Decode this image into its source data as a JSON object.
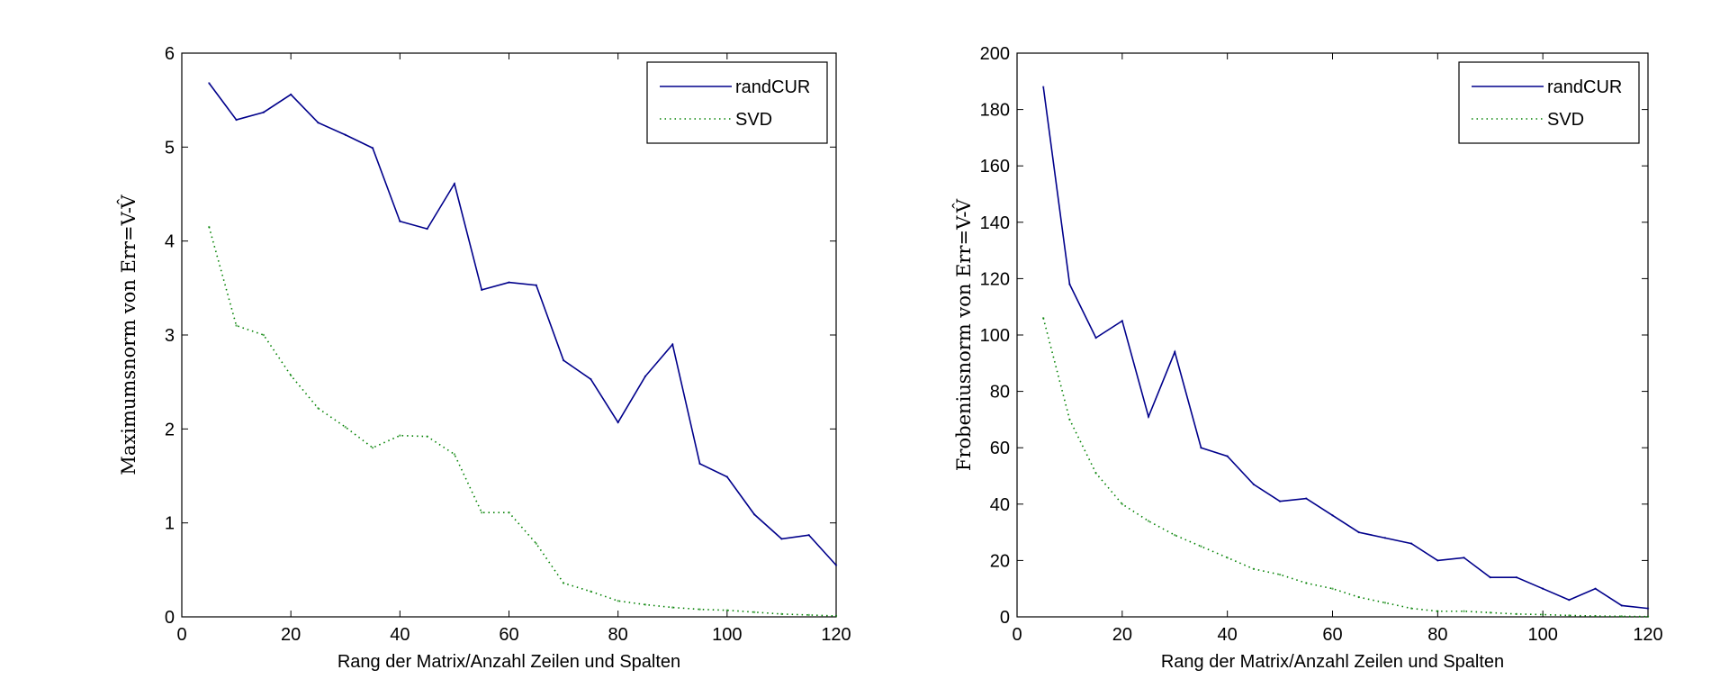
{
  "chart_data": [
    {
      "type": "line",
      "xlabel": "Rang der Matrix/Anzahl Zeilen und Spalten",
      "ylabel": "Maximumsnorm von Err=V-V̂",
      "xlim": [
        0,
        120
      ],
      "ylim": [
        0,
        6
      ],
      "xticks": [
        "0",
        "20",
        "40",
        "60",
        "80",
        "100",
        "120"
      ],
      "yticks": [
        "0",
        "1",
        "2",
        "3",
        "4",
        "5",
        "6"
      ],
      "xtick_values": [
        0,
        20,
        40,
        60,
        80,
        100,
        120
      ],
      "ytick_values": [
        0,
        1,
        2,
        3,
        4,
        5,
        6
      ],
      "grid": false,
      "legend_position": "top-right",
      "x": [
        5,
        10,
        15,
        20,
        25,
        30,
        35,
        40,
        45,
        50,
        55,
        60,
        65,
        70,
        75,
        80,
        85,
        90,
        95,
        100,
        105,
        110,
        115,
        120
      ],
      "series": [
        {
          "name": "randCUR",
          "style": "solid",
          "color": "#00008B",
          "values": [
            5.68,
            5.29,
            5.37,
            5.56,
            5.26,
            5.13,
            4.99,
            4.21,
            4.13,
            4.61,
            3.48,
            3.56,
            3.53,
            2.73,
            2.53,
            2.07,
            2.56,
            2.9,
            1.63,
            1.49,
            1.09,
            0.83,
            0.87,
            0.55
          ]
        },
        {
          "name": "SVD",
          "style": "dotted",
          "color": "#008000",
          "values": [
            4.15,
            3.1,
            3.0,
            2.57,
            2.22,
            2.02,
            1.8,
            1.93,
            1.92,
            1.73,
            1.11,
            1.11,
            0.78,
            0.36,
            0.27,
            0.17,
            0.13,
            0.1,
            0.08,
            0.07,
            0.05,
            0.03,
            0.02,
            0.01
          ]
        }
      ]
    },
    {
      "type": "line",
      "xlabel": "Rang der Matrix/Anzahl Zeilen und Spalten",
      "ylabel": "Frobeniusnorm von Err=V-V̂",
      "xlim": [
        0,
        120
      ],
      "ylim": [
        0,
        200
      ],
      "xticks": [
        "0",
        "20",
        "40",
        "60",
        "80",
        "100",
        "120"
      ],
      "yticks": [
        "0",
        "20",
        "40",
        "60",
        "80",
        "100",
        "120",
        "140",
        "160",
        "180",
        "200"
      ],
      "xtick_values": [
        0,
        20,
        40,
        60,
        80,
        100,
        120
      ],
      "ytick_values": [
        0,
        20,
        40,
        60,
        80,
        100,
        120,
        140,
        160,
        180,
        200
      ],
      "grid": false,
      "legend_position": "top-right",
      "x": [
        5,
        10,
        15,
        20,
        25,
        30,
        35,
        40,
        45,
        50,
        55,
        60,
        65,
        70,
        75,
        80,
        85,
        90,
        95,
        100,
        105,
        110,
        115,
        120
      ],
      "series": [
        {
          "name": "randCUR",
          "style": "solid",
          "color": "#00008B",
          "values": [
            188,
            118,
            99,
            105,
            71,
            94,
            60,
            57,
            47,
            41,
            42,
            36,
            30,
            28,
            26,
            20,
            21,
            14,
            14,
            10,
            6,
            10,
            4,
            3
          ]
        },
        {
          "name": "SVD",
          "style": "dotted",
          "color": "#008000",
          "values": [
            106,
            70,
            51,
            40,
            34,
            29,
            25,
            21,
            17,
            15,
            12,
            10,
            7,
            5,
            3,
            2,
            2,
            1.5,
            1,
            0.8,
            0.5,
            0.3,
            0.2,
            0.1
          ]
        }
      ]
    }
  ]
}
